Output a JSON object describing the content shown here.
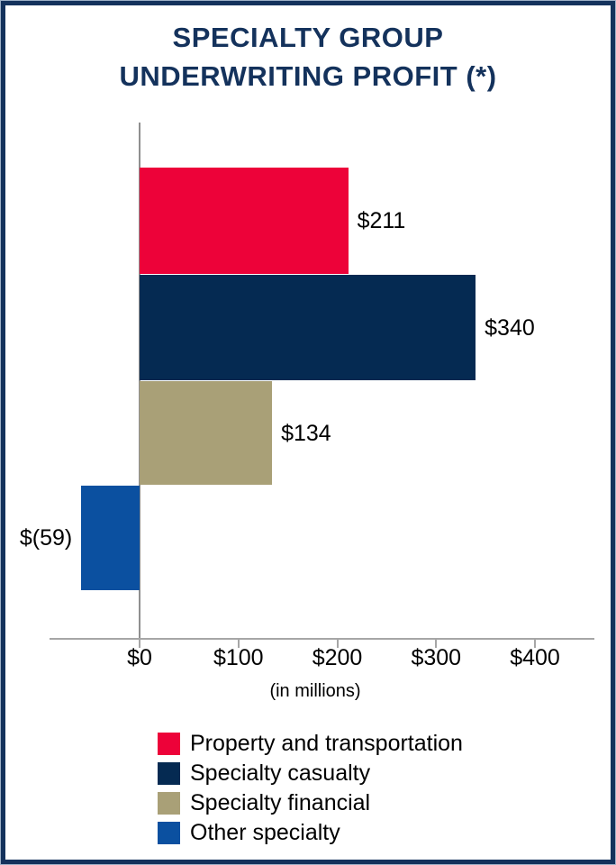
{
  "title": {
    "line1": "SPECIALTY GROUP",
    "line2": "UNDERWRITING PROFIT (*)",
    "color": "#14325c"
  },
  "chart_data": {
    "type": "bar",
    "orientation": "horizontal",
    "title": "SPECIALTY GROUP UNDERWRITING PROFIT (*)",
    "categories": [
      "Property and transportation",
      "Specialty casualty",
      "Specialty financial",
      "Other specialty"
    ],
    "values": [
      211,
      340,
      134,
      -59
    ],
    "value_labels": [
      "$211",
      "$340",
      "$134",
      "$(59)"
    ],
    "colors": [
      "#ed0239",
      "#052a52",
      "#a9a077",
      "#0b50a0"
    ],
    "xlabel_note": "(in millions)",
    "x_axis": {
      "ticks": [
        0,
        100,
        200,
        300,
        400
      ],
      "tick_labels": [
        "$0",
        "$100",
        "$200",
        "$300",
        "$400"
      ],
      "range": [
        -91,
        460
      ],
      "grid": false
    },
    "legend": {
      "position": "bottom-left",
      "entries": [
        {
          "label": "Property and transportation",
          "color": "#ed0239"
        },
        {
          "label": "Specialty casualty",
          "color": "#052a52"
        },
        {
          "label": "Specialty financial",
          "color": "#a9a077"
        },
        {
          "label": "Other specialty",
          "color": "#0b50a0"
        }
      ]
    }
  }
}
